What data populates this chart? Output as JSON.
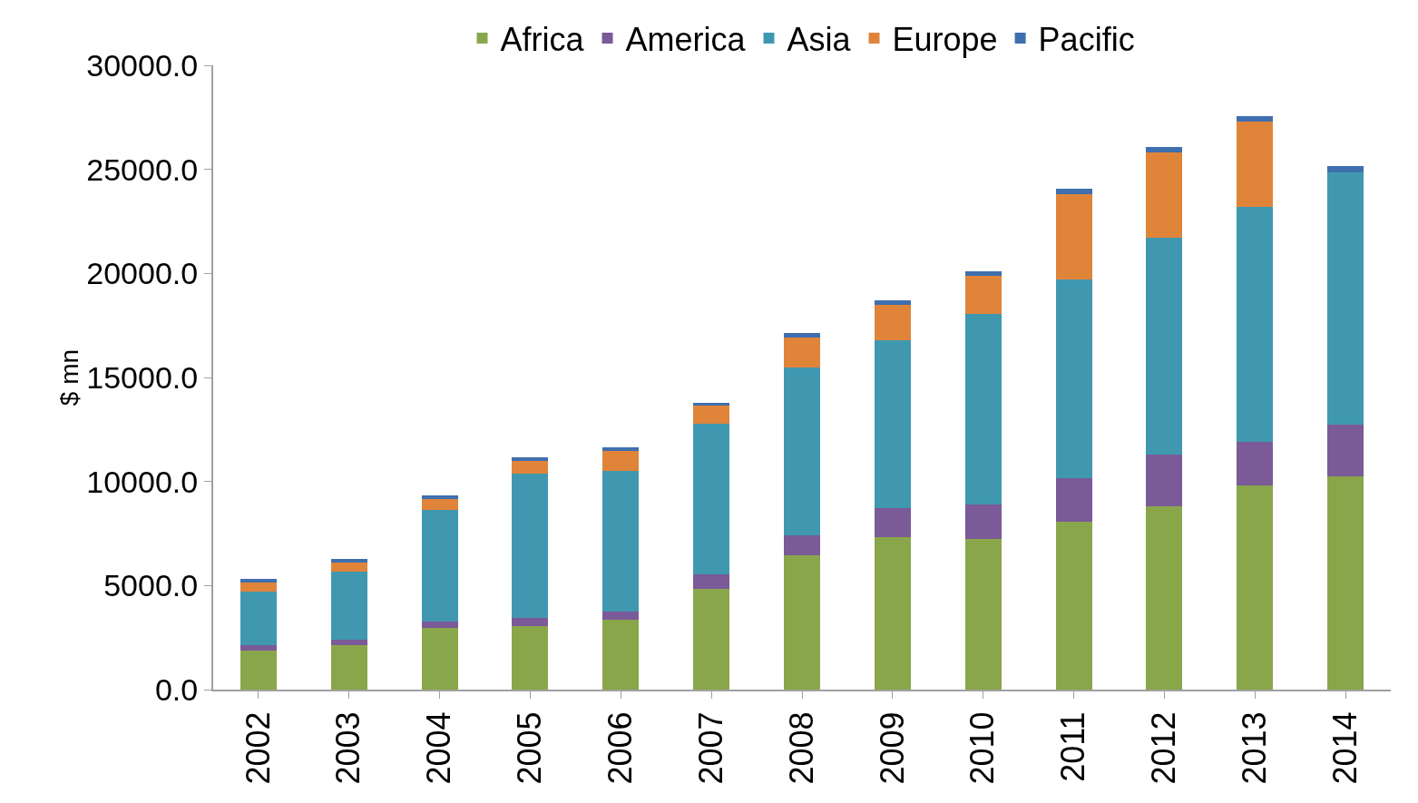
{
  "chart_data": {
    "type": "bar",
    "stacked": true,
    "ylabel": "$ mn",
    "categories": [
      "2002",
      "2003",
      "2004",
      "2005",
      "2006",
      "2007",
      "2008",
      "2009",
      "2010",
      "2011",
      "2012",
      "2013",
      "2014"
    ],
    "series": [
      {
        "name": "Africa",
        "color": "#8aa64b",
        "values": [
          1890,
          2150,
          2970,
          3050,
          3350,
          4860,
          6450,
          7310,
          7220,
          8080,
          8820,
          9800,
          10230
        ]
      },
      {
        "name": "America",
        "color": "#7a5a97",
        "values": [
          260,
          260,
          300,
          390,
          390,
          690,
          950,
          1420,
          1680,
          2060,
          2490,
          2110,
          2490
        ]
      },
      {
        "name": "Asia",
        "color": "#4098b0",
        "values": [
          2580,
          3270,
          5380,
          6920,
          6750,
          7220,
          8080,
          8040,
          9160,
          9550,
          10410,
          11270,
          12130
        ]
      },
      {
        "name": "Europe",
        "color": "#e0843a",
        "values": [
          430,
          430,
          520,
          650,
          990,
          860,
          1420,
          1720,
          1810,
          4130,
          4090,
          4130,
          0
        ]
      },
      {
        "name": "Pacific",
        "color": "#3f6fae",
        "values": [
          150,
          150,
          150,
          150,
          150,
          150,
          220,
          215,
          215,
          260,
          260,
          260,
          300
        ]
      }
    ],
    "ylim": [
      0,
      30000
    ],
    "yticks": [
      {
        "value": 0,
        "label": "0.0"
      },
      {
        "value": 5000,
        "label": "5000.0"
      },
      {
        "value": 10000,
        "label": "10000.0"
      },
      {
        "value": 15000,
        "label": "15000.0"
      },
      {
        "value": 20000,
        "label": "20000.0"
      },
      {
        "value": 25000,
        "label": "25000.0"
      },
      {
        "value": 30000,
        "label": "30000.0"
      }
    ],
    "grid": false,
    "legend": "top"
  }
}
